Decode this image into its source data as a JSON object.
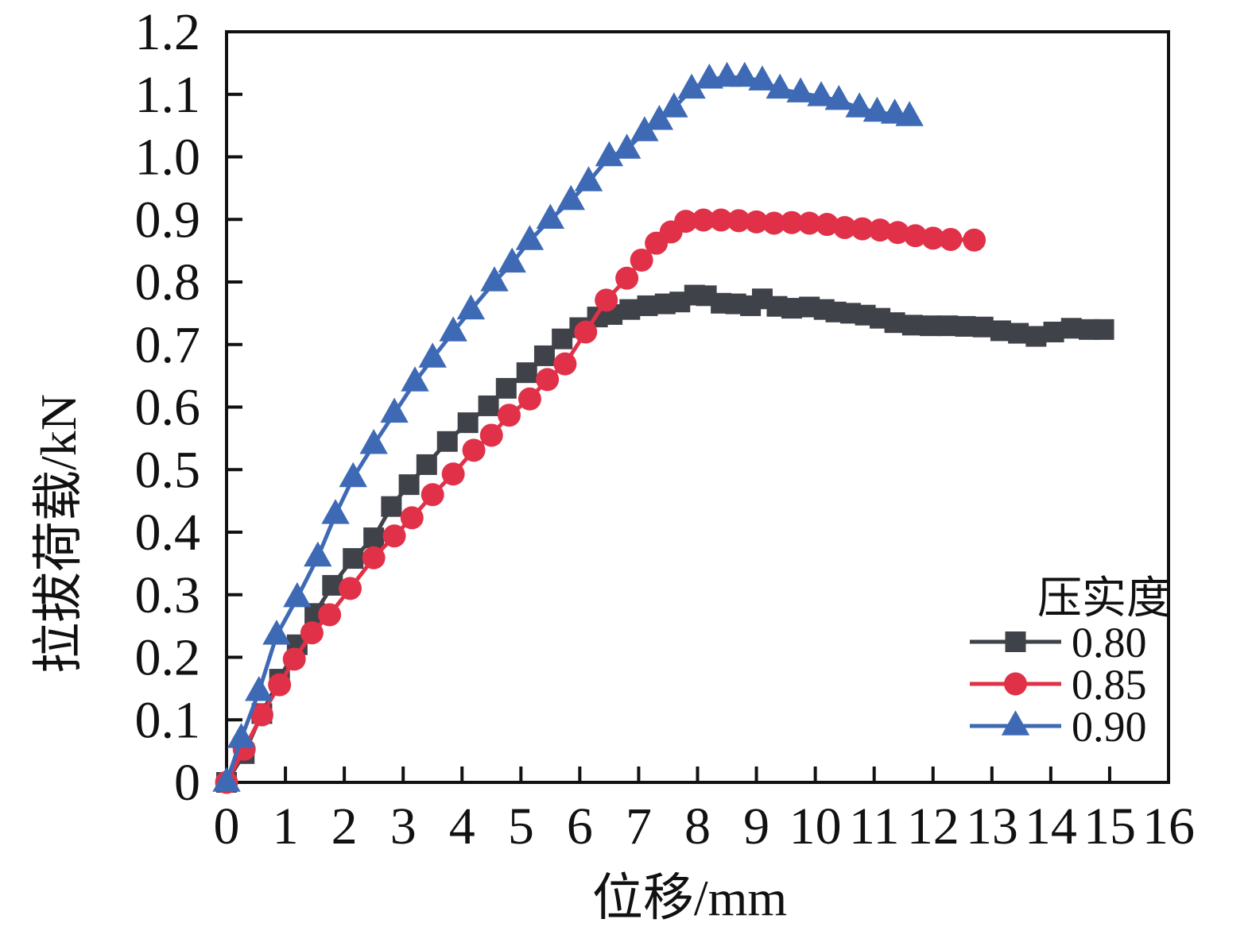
{
  "chart_data": {
    "type": "line",
    "title": "",
    "xlabel": "位移/mm",
    "ylabel": "拉拔荷载/kN",
    "xlim": [
      0,
      16
    ],
    "ylim": [
      0,
      1.2
    ],
    "grid": false,
    "x_tick_values": [
      0,
      1,
      2,
      3,
      4,
      5,
      6,
      7,
      8,
      9,
      10,
      11,
      12,
      13,
      14,
      15,
      16
    ],
    "x_tick_labels": [
      "0",
      "1",
      "2",
      "3",
      "4",
      "5",
      "6",
      "7",
      "8",
      "9",
      "10",
      "11",
      "12",
      "13",
      "14",
      "15",
      "16"
    ],
    "y_tick_values": [
      0,
      0.1,
      0.2,
      0.3,
      0.4,
      0.5,
      0.6,
      0.7,
      0.8,
      0.9,
      1.0,
      1.1,
      1.2
    ],
    "y_tick_labels": [
      "0",
      "0.1",
      "0.2",
      "0.3",
      "0.4",
      "0.5",
      "0.6",
      "0.7",
      "0.8",
      "0.9",
      "1.0",
      "1.1",
      "1.2"
    ],
    "legend": {
      "title": "压实度",
      "position": "lower right"
    },
    "axis_color": "#111111",
    "series": [
      {
        "name": "0.80",
        "marker": "square",
        "color": "#3f4249",
        "points": [
          [
            0,
            0
          ],
          [
            0.3,
            0.046
          ],
          [
            0.6,
            0.11
          ],
          [
            0.9,
            0.165
          ],
          [
            1.2,
            0.22
          ],
          [
            1.5,
            0.27
          ],
          [
            1.8,
            0.315
          ],
          [
            2.15,
            0.358
          ],
          [
            2.5,
            0.391
          ],
          [
            2.8,
            0.441
          ],
          [
            3.1,
            0.476
          ],
          [
            3.4,
            0.508
          ],
          [
            3.75,
            0.545
          ],
          [
            4.1,
            0.575
          ],
          [
            4.45,
            0.602
          ],
          [
            4.75,
            0.63
          ],
          [
            5.1,
            0.655
          ],
          [
            5.4,
            0.682
          ],
          [
            5.7,
            0.709
          ],
          [
            6.0,
            0.727
          ],
          [
            6.3,
            0.744
          ],
          [
            6.55,
            0.748
          ],
          [
            6.85,
            0.756
          ],
          [
            7.15,
            0.762
          ],
          [
            7.45,
            0.765
          ],
          [
            7.7,
            0.768
          ],
          [
            7.95,
            0.779
          ],
          [
            8.15,
            0.778
          ],
          [
            8.4,
            0.766
          ],
          [
            8.65,
            0.765
          ],
          [
            8.9,
            0.762
          ],
          [
            9.1,
            0.773
          ],
          [
            9.35,
            0.761
          ],
          [
            9.6,
            0.758
          ],
          [
            9.9,
            0.76
          ],
          [
            10.15,
            0.756
          ],
          [
            10.35,
            0.752
          ],
          [
            10.6,
            0.75
          ],
          [
            10.85,
            0.747
          ],
          [
            11.1,
            0.742
          ],
          [
            11.35,
            0.735
          ],
          [
            11.65,
            0.731
          ],
          [
            11.95,
            0.73
          ],
          [
            12.25,
            0.73
          ],
          [
            12.55,
            0.729
          ],
          [
            12.85,
            0.728
          ],
          [
            13.15,
            0.722
          ],
          [
            13.45,
            0.718
          ],
          [
            13.75,
            0.713
          ],
          [
            14.05,
            0.72
          ],
          [
            14.35,
            0.726
          ],
          [
            14.65,
            0.724
          ],
          [
            14.9,
            0.724
          ]
        ]
      },
      {
        "name": "0.85",
        "marker": "circle",
        "color": "#e13148",
        "points": [
          [
            0,
            0
          ],
          [
            0.3,
            0.053
          ],
          [
            0.6,
            0.108
          ],
          [
            0.9,
            0.156
          ],
          [
            1.15,
            0.197
          ],
          [
            1.45,
            0.239
          ],
          [
            1.75,
            0.268
          ],
          [
            2.1,
            0.31
          ],
          [
            2.5,
            0.359
          ],
          [
            2.85,
            0.394
          ],
          [
            3.15,
            0.423
          ],
          [
            3.5,
            0.46
          ],
          [
            3.85,
            0.493
          ],
          [
            4.2,
            0.531
          ],
          [
            4.5,
            0.555
          ],
          [
            4.8,
            0.587
          ],
          [
            5.15,
            0.613
          ],
          [
            5.45,
            0.644
          ],
          [
            5.75,
            0.669
          ],
          [
            6.1,
            0.72
          ],
          [
            6.45,
            0.771
          ],
          [
            6.8,
            0.806
          ],
          [
            7.05,
            0.835
          ],
          [
            7.3,
            0.862
          ],
          [
            7.55,
            0.88
          ],
          [
            7.8,
            0.897
          ],
          [
            8.1,
            0.899
          ],
          [
            8.4,
            0.899
          ],
          [
            8.7,
            0.898
          ],
          [
            9.0,
            0.896
          ],
          [
            9.3,
            0.894
          ],
          [
            9.6,
            0.895
          ],
          [
            9.9,
            0.894
          ],
          [
            10.2,
            0.892
          ],
          [
            10.5,
            0.887
          ],
          [
            10.8,
            0.885
          ],
          [
            11.1,
            0.883
          ],
          [
            11.4,
            0.879
          ],
          [
            11.7,
            0.874
          ],
          [
            12.0,
            0.87
          ],
          [
            12.3,
            0.868
          ],
          [
            12.7,
            0.867
          ]
        ]
      },
      {
        "name": "0.90",
        "marker": "triangle",
        "color": "#3e6ab5",
        "points": [
          [
            0,
            0
          ],
          [
            0.25,
            0.07
          ],
          [
            0.55,
            0.145
          ],
          [
            0.85,
            0.235
          ],
          [
            1.2,
            0.295
          ],
          [
            1.55,
            0.36
          ],
          [
            1.85,
            0.428
          ],
          [
            2.15,
            0.487
          ],
          [
            2.5,
            0.54
          ],
          [
            2.85,
            0.59
          ],
          [
            3.2,
            0.64
          ],
          [
            3.5,
            0.678
          ],
          [
            3.85,
            0.72
          ],
          [
            4.15,
            0.755
          ],
          [
            4.55,
            0.8
          ],
          [
            4.85,
            0.83
          ],
          [
            5.15,
            0.866
          ],
          [
            5.5,
            0.9
          ],
          [
            5.85,
            0.93
          ],
          [
            6.15,
            0.96
          ],
          [
            6.5,
            1.0
          ],
          [
            6.8,
            1.012
          ],
          [
            7.1,
            1.04
          ],
          [
            7.35,
            1.058
          ],
          [
            7.6,
            1.078
          ],
          [
            7.9,
            1.108
          ],
          [
            8.2,
            1.124
          ],
          [
            8.5,
            1.127
          ],
          [
            8.8,
            1.127
          ],
          [
            9.1,
            1.121
          ],
          [
            9.4,
            1.108
          ],
          [
            9.75,
            1.102
          ],
          [
            10.1,
            1.096
          ],
          [
            10.4,
            1.09
          ],
          [
            10.75,
            1.078
          ],
          [
            11.05,
            1.071
          ],
          [
            11.35,
            1.068
          ],
          [
            11.6,
            1.064
          ]
        ]
      }
    ]
  }
}
